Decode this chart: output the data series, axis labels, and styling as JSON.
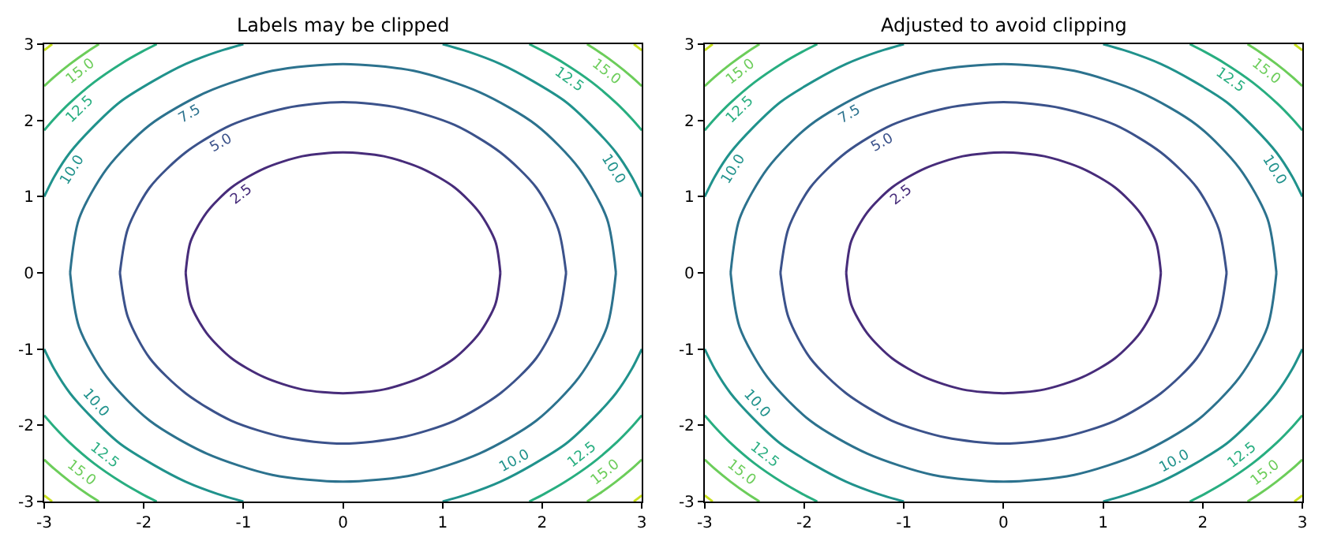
{
  "chart_data": [
    {
      "type": "line",
      "title": "Labels may be clipped",
      "xlim": [
        -3,
        3
      ],
      "ylim": [
        -3,
        3
      ],
      "xticks": [
        -3,
        -2,
        -1,
        0,
        1,
        2,
        3
      ],
      "yticks": [
        -3,
        -2,
        -1,
        0,
        1,
        2,
        3
      ],
      "marker": "none",
      "line_style": "solid",
      "series": [
        {
          "color": "#472c7a",
          "x": [
            1.58,
            1.53,
            1.37,
            1.12,
            0.79,
            0.41,
            0,
            -0.41,
            -0.79,
            -1.12,
            -1.37,
            -1.53,
            -1.58,
            null,
            -1.58,
            -1.53,
            -1.37,
            -1.12,
            -0.79,
            -0.41,
            0,
            0.41,
            0.79,
            1.12,
            1.37,
            1.53,
            1.58
          ],
          "values": [
            0,
            0.41,
            0.79,
            1.12,
            1.37,
            1.53,
            1.58,
            1.53,
            1.37,
            1.12,
            0.79,
            0.41,
            0,
            null,
            0,
            -0.41,
            -0.79,
            -1.12,
            -1.37,
            -1.53,
            -1.58,
            -1.53,
            -1.37,
            -1.12,
            -0.79,
            -0.41,
            0
          ]
        },
        {
          "color": "#3b528b",
          "x": [
            2.24,
            2.16,
            1.94,
            1.58,
            1.12,
            0.58,
            0,
            -0.58,
            -1.12,
            -1.58,
            -1.94,
            -2.16,
            -2.24,
            null,
            -2.24,
            -2.16,
            -1.94,
            -1.58,
            -1.12,
            -0.58,
            0,
            0.58,
            1.12,
            1.58,
            1.94,
            2.16,
            2.24
          ],
          "values": [
            0,
            0.58,
            1.12,
            1.58,
            1.94,
            2.16,
            2.24,
            2.16,
            1.94,
            1.58,
            1.12,
            0.58,
            0,
            null,
            0,
            -0.58,
            -1.12,
            -1.58,
            -1.94,
            -2.16,
            -2.24,
            -2.16,
            -1.94,
            -1.58,
            -1.12,
            -0.58,
            0
          ]
        },
        {
          "color": "#2c728e",
          "x": [
            2.74,
            2.65,
            2.37,
            1.94,
            1.37,
            0.71,
            0,
            -0.71,
            -1.37,
            -1.94,
            -2.37,
            -2.65,
            -2.74,
            null,
            -2.74,
            -2.65,
            -2.37,
            -1.94,
            -1.37,
            -0.71,
            0,
            0.71,
            1.37,
            1.94,
            2.37,
            2.65,
            2.74
          ],
          "values": [
            0,
            0.71,
            1.37,
            1.94,
            2.37,
            2.65,
            2.74,
            2.65,
            2.37,
            1.94,
            1.37,
            0.71,
            0,
            null,
            0,
            -0.71,
            -1.37,
            -1.94,
            -2.37,
            -2.65,
            -2.74,
            -2.65,
            -2.37,
            -1.94,
            -1.37,
            -0.71,
            0
          ]
        },
        {
          "color": "#20928c",
          "x": [
            3,
            2.9,
            2.74,
            2.52,
            2.24,
            1.9,
            1.58,
            1.26,
            1,
            null,
            -3,
            -2.9,
            -2.74,
            -2.52,
            -2.24,
            -1.9,
            -1.58,
            -1.26,
            -1,
            null,
            -3,
            -2.9,
            -2.74,
            -2.52,
            -2.24,
            -1.9,
            -1.58,
            -1.26,
            -1,
            null,
            3,
            2.9,
            2.74,
            2.52,
            2.24,
            1.9,
            1.58,
            1.26,
            1
          ],
          "values": [
            1,
            1.26,
            1.58,
            1.9,
            2.24,
            2.52,
            2.74,
            2.9,
            3,
            null,
            1,
            1.26,
            1.58,
            1.9,
            2.24,
            2.52,
            2.74,
            2.9,
            3,
            null,
            -1,
            -1.26,
            -1.58,
            -1.9,
            -2.24,
            -2.52,
            -2.74,
            -2.9,
            -3,
            null,
            -1,
            -1.26,
            -1.58,
            -1.9,
            -2.24,
            -2.52,
            -2.74,
            -2.9,
            -3
          ]
        },
        {
          "color": "#28ae80",
          "x": [
            3,
            2.9,
            2.75,
            2.5,
            2.22,
            2.02,
            1.87,
            null,
            -3,
            -2.9,
            -2.75,
            -2.5,
            -2.22,
            -2.02,
            -1.87,
            null,
            -3,
            -2.9,
            -2.75,
            -2.5,
            -2.22,
            -2.02,
            -1.87,
            null,
            3,
            2.9,
            2.75,
            2.5,
            2.22,
            2.02,
            1.87
          ],
          "values": [
            1.87,
            2.02,
            2.22,
            2.5,
            2.75,
            2.9,
            3,
            null,
            1.87,
            2.02,
            2.22,
            2.5,
            2.75,
            2.9,
            3,
            null,
            -1.87,
            -2.02,
            -2.22,
            -2.5,
            -2.75,
            -2.9,
            -3,
            null,
            -1.87,
            -2.02,
            -2.22,
            -2.5,
            -2.75,
            -2.9,
            -3
          ]
        },
        {
          "color": "#6ccd5a",
          "x": [
            3,
            2.9,
            2.74,
            2.57,
            2.45,
            null,
            -3,
            -2.9,
            -2.74,
            -2.57,
            -2.45,
            null,
            -3,
            -2.9,
            -2.74,
            -2.57,
            -2.45,
            null,
            3,
            2.9,
            2.74,
            2.57,
            2.45
          ],
          "values": [
            2.45,
            2.57,
            2.74,
            2.9,
            3,
            null,
            2.45,
            2.57,
            2.74,
            2.9,
            3,
            null,
            -2.45,
            -2.57,
            -2.74,
            -2.9,
            -3,
            null,
            -2.45,
            -2.57,
            -2.74,
            -2.9,
            -3
          ]
        },
        {
          "color": "#c8e020",
          "x": [
            3,
            2.96,
            2.92,
            null,
            -3,
            -2.96,
            -2.92,
            null,
            -3,
            -2.96,
            -2.92,
            null,
            3,
            2.96,
            2.92
          ],
          "values": [
            2.92,
            2.96,
            3,
            null,
            2.92,
            2.96,
            3,
            null,
            -2.92,
            -2.96,
            -3,
            null,
            -2.92,
            -2.96,
            -3
          ]
        }
      ],
      "annotations": [
        {
          "text": "2.5",
          "x": -1.12,
          "y": 1.12
        },
        {
          "text": "5.0",
          "x": -1.3,
          "y": 1.82
        },
        {
          "text": "7.5",
          "x": -1.63,
          "y": 2.2
        },
        {
          "text": "10.0",
          "x": -2.83,
          "y": 1.41
        },
        {
          "text": "12.5",
          "x": -2.75,
          "y": 2.22
        },
        {
          "text": "15.0",
          "x": -2.74,
          "y": 2.74
        },
        {
          "text": "15.0",
          "x": 2.74,
          "y": 2.74
        },
        {
          "text": "12.5",
          "x": 2.36,
          "y": 2.63
        },
        {
          "text": "10.0",
          "x": 2.83,
          "y": 1.41
        },
        {
          "text": "10.0",
          "x": -2.6,
          "y": -1.8
        },
        {
          "text": "12.5",
          "x": -2.5,
          "y": -2.5
        },
        {
          "text": "15.0",
          "x": -2.74,
          "y": -2.74
        },
        {
          "text": "10.0",
          "x": 1.8,
          "y": -2.6
        },
        {
          "text": "12.5",
          "x": 2.5,
          "y": -2.5
        },
        {
          "text": "15.0",
          "x": 2.74,
          "y": -2.74
        }
      ]
    },
    {
      "type": "line",
      "title": "Adjusted to avoid clipping",
      "xlim": [
        -3,
        3
      ],
      "ylim": [
        -3,
        3
      ],
      "xticks": [
        -3,
        -2,
        -1,
        0,
        1,
        2,
        3
      ],
      "yticks": [
        -3,
        -2,
        -1,
        0,
        1,
        2,
        3
      ],
      "marker": "none",
      "line_style": "solid",
      "series": [
        {
          "color": "#472c7a",
          "x": [
            1.58,
            1.53,
            1.37,
            1.12,
            0.79,
            0.41,
            0,
            -0.41,
            -0.79,
            -1.12,
            -1.37,
            -1.53,
            -1.58,
            null,
            -1.58,
            -1.53,
            -1.37,
            -1.12,
            -0.79,
            -0.41,
            0,
            0.41,
            0.79,
            1.12,
            1.37,
            1.53,
            1.58
          ],
          "values": [
            0,
            0.41,
            0.79,
            1.12,
            1.37,
            1.53,
            1.58,
            1.53,
            1.37,
            1.12,
            0.79,
            0.41,
            0,
            null,
            0,
            -0.41,
            -0.79,
            -1.12,
            -1.37,
            -1.53,
            -1.58,
            -1.53,
            -1.37,
            -1.12,
            -0.79,
            -0.41,
            0
          ]
        },
        {
          "color": "#3b528b",
          "x": [
            2.24,
            2.16,
            1.94,
            1.58,
            1.12,
            0.58,
            0,
            -0.58,
            -1.12,
            -1.58,
            -1.94,
            -2.16,
            -2.24,
            null,
            -2.24,
            -2.16,
            -1.94,
            -1.58,
            -1.12,
            -0.58,
            0,
            0.58,
            1.12,
            1.58,
            1.94,
            2.16,
            2.24
          ],
          "values": [
            0,
            0.58,
            1.12,
            1.58,
            1.94,
            2.16,
            2.24,
            2.16,
            1.94,
            1.58,
            1.12,
            0.58,
            0,
            null,
            0,
            -0.58,
            -1.12,
            -1.58,
            -1.94,
            -2.16,
            -2.24,
            -2.16,
            -1.94,
            -1.58,
            -1.12,
            -0.58,
            0
          ]
        },
        {
          "color": "#2c728e",
          "x": [
            2.74,
            2.65,
            2.37,
            1.94,
            1.37,
            0.71,
            0,
            -0.71,
            -1.37,
            -1.94,
            -2.37,
            -2.65,
            -2.74,
            null,
            -2.74,
            -2.65,
            -2.37,
            -1.94,
            -1.37,
            -0.71,
            0,
            0.71,
            1.37,
            1.94,
            2.37,
            2.65,
            2.74
          ],
          "values": [
            0,
            0.71,
            1.37,
            1.94,
            2.37,
            2.65,
            2.74,
            2.65,
            2.37,
            1.94,
            1.37,
            0.71,
            0,
            null,
            0,
            -0.71,
            -1.37,
            -1.94,
            -2.37,
            -2.65,
            -2.74,
            -2.65,
            -2.37,
            -1.94,
            -1.37,
            -0.71,
            0
          ]
        },
        {
          "color": "#20928c",
          "x": [
            3,
            2.9,
            2.74,
            2.52,
            2.24,
            1.9,
            1.58,
            1.26,
            1,
            null,
            -3,
            -2.9,
            -2.74,
            -2.52,
            -2.24,
            -1.9,
            -1.58,
            -1.26,
            -1,
            null,
            -3,
            -2.9,
            -2.74,
            -2.52,
            -2.24,
            -1.9,
            -1.58,
            -1.26,
            -1,
            null,
            3,
            2.9,
            2.74,
            2.52,
            2.24,
            1.9,
            1.58,
            1.26,
            1
          ],
          "values": [
            1,
            1.26,
            1.58,
            1.9,
            2.24,
            2.52,
            2.74,
            2.9,
            3,
            null,
            1,
            1.26,
            1.58,
            1.9,
            2.24,
            2.52,
            2.74,
            2.9,
            3,
            null,
            -1,
            -1.26,
            -1.58,
            -1.9,
            -2.24,
            -2.52,
            -2.74,
            -2.9,
            -3,
            null,
            -1,
            -1.26,
            -1.58,
            -1.9,
            -2.24,
            -2.52,
            -2.74,
            -2.9,
            -3
          ]
        },
        {
          "color": "#28ae80",
          "x": [
            3,
            2.9,
            2.75,
            2.5,
            2.22,
            2.02,
            1.87,
            null,
            -3,
            -2.9,
            -2.75,
            -2.5,
            -2.22,
            -2.02,
            -1.87,
            null,
            -3,
            -2.9,
            -2.75,
            -2.5,
            -2.22,
            -2.02,
            -1.87,
            null,
            3,
            2.9,
            2.75,
            2.5,
            2.22,
            2.02,
            1.87
          ],
          "values": [
            1.87,
            2.02,
            2.22,
            2.5,
            2.75,
            2.9,
            3,
            null,
            1.87,
            2.02,
            2.22,
            2.5,
            2.75,
            2.9,
            3,
            null,
            -1.87,
            -2.02,
            -2.22,
            -2.5,
            -2.75,
            -2.9,
            -3,
            null,
            -1.87,
            -2.02,
            -2.22,
            -2.5,
            -2.75,
            -2.9,
            -3
          ]
        },
        {
          "color": "#6ccd5a",
          "x": [
            3,
            2.9,
            2.74,
            2.57,
            2.45,
            null,
            -3,
            -2.9,
            -2.74,
            -2.57,
            -2.45,
            null,
            -3,
            -2.9,
            -2.74,
            -2.57,
            -2.45,
            null,
            3,
            2.9,
            2.74,
            2.57,
            2.45
          ],
          "values": [
            2.45,
            2.57,
            2.74,
            2.9,
            3,
            null,
            2.45,
            2.57,
            2.74,
            2.9,
            3,
            null,
            -2.45,
            -2.57,
            -2.74,
            -2.9,
            -3,
            null,
            -2.45,
            -2.57,
            -2.74,
            -2.9,
            -3
          ]
        },
        {
          "color": "#c8e020",
          "x": [
            3,
            2.96,
            2.92,
            null,
            -3,
            -2.96,
            -2.92,
            null,
            -3,
            -2.96,
            -2.92,
            null,
            3,
            2.96,
            2.92
          ],
          "values": [
            2.92,
            2.96,
            3,
            null,
            2.92,
            2.96,
            3,
            null,
            -2.92,
            -2.96,
            -3,
            null,
            -2.92,
            -2.96,
            -3
          ]
        }
      ],
      "annotations": [
        {
          "text": "2.5",
          "x": -1.12,
          "y": 1.12
        },
        {
          "text": "5.0",
          "x": -1.3,
          "y": 1.82
        },
        {
          "text": "7.5",
          "x": -1.63,
          "y": 2.2
        },
        {
          "text": "10.0",
          "x": -2.83,
          "y": 1.41
        },
        {
          "text": "12.5",
          "x": -2.75,
          "y": 2.22
        },
        {
          "text": "15.0",
          "x": -2.74,
          "y": 2.74
        },
        {
          "text": "15.0",
          "x": 2.74,
          "y": 2.74
        },
        {
          "text": "12.5",
          "x": 2.36,
          "y": 2.63
        },
        {
          "text": "10.0",
          "x": 2.83,
          "y": 1.41
        },
        {
          "text": "10.0",
          "x": -2.6,
          "y": -1.8
        },
        {
          "text": "12.5",
          "x": -2.5,
          "y": -2.5
        },
        {
          "text": "15.0",
          "x": -2.74,
          "y": -2.74
        },
        {
          "text": "10.0",
          "x": 1.8,
          "y": -2.6
        },
        {
          "text": "12.5",
          "x": 2.5,
          "y": -2.5
        },
        {
          "text": "15.0",
          "x": 2.74,
          "y": -2.74
        }
      ]
    }
  ]
}
